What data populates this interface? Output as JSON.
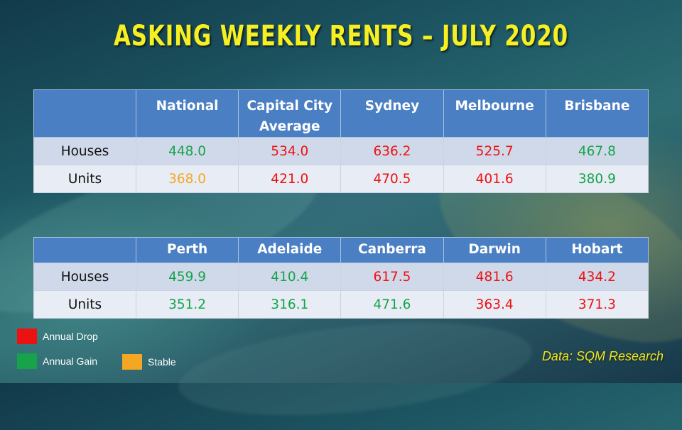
{
  "title": "ASKING WEEKLY RENTS – JULY 2020",
  "colors": {
    "drop": "#ee1111",
    "gain": "#16a34a",
    "stable": "#f5a623",
    "header_bg": "#4a7fc4",
    "title": "#f6ef22"
  },
  "table1": {
    "headers": [
      "",
      "National",
      "Capital City\nAverage",
      "Sydney",
      "Melbourne",
      "Brisbane"
    ],
    "rows": [
      {
        "label": "Houses",
        "cells": [
          {
            "value": "448.0",
            "status": "gain"
          },
          {
            "value": "534.0",
            "status": "drop"
          },
          {
            "value": "636.2",
            "status": "drop"
          },
          {
            "value": "525.7",
            "status": "drop"
          },
          {
            "value": "467.8",
            "status": "gain"
          }
        ]
      },
      {
        "label": "Units",
        "cells": [
          {
            "value": "368.0",
            "status": "stable"
          },
          {
            "value": "421.0",
            "status": "drop"
          },
          {
            "value": "470.5",
            "status": "drop"
          },
          {
            "value": "401.6",
            "status": "drop"
          },
          {
            "value": "380.9",
            "status": "gain"
          }
        ]
      }
    ]
  },
  "table2": {
    "headers": [
      "",
      "Perth",
      "Adelaide",
      "Canberra",
      "Darwin",
      "Hobart"
    ],
    "rows": [
      {
        "label": "Houses",
        "cells": [
          {
            "value": "459.9",
            "status": "gain"
          },
          {
            "value": "410.4",
            "status": "gain"
          },
          {
            "value": "617.5",
            "status": "drop"
          },
          {
            "value": "481.6",
            "status": "drop"
          },
          {
            "value": "434.2",
            "status": "drop"
          }
        ]
      },
      {
        "label": "Units",
        "cells": [
          {
            "value": "351.2",
            "status": "gain"
          },
          {
            "value": "316.1",
            "status": "gain"
          },
          {
            "value": "471.6",
            "status": "gain"
          },
          {
            "value": "363.4",
            "status": "drop"
          },
          {
            "value": "371.3",
            "status": "drop"
          }
        ]
      }
    ]
  },
  "legend": {
    "drop": "Annual Drop",
    "gain": "Annual Gain",
    "stable": "Stable"
  },
  "source": "Data: SQM Research"
}
